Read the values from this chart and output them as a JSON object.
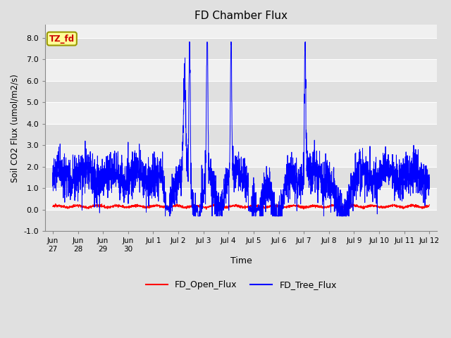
{
  "title": "FD Chamber Flux",
  "ylabel": "Soil CO2 Flux (umol/m2/s)",
  "xlabel": "Time",
  "ylim": [
    -1.0,
    8.6
  ],
  "yticks": [
    -1.0,
    0.0,
    1.0,
    2.0,
    3.0,
    4.0,
    5.0,
    6.0,
    7.0,
    8.0
  ],
  "fig_bg_color": "#e0e0e0",
  "plot_bg_color": "#f0f0f0",
  "grid_color": "#ffffff",
  "band_color_light": "#f0f0f0",
  "band_color_dark": "#e0e0e0",
  "annotation_text": "TZ_fd",
  "annotation_bg": "#ffff99",
  "annotation_text_color": "#cc0000",
  "annotation_border_color": "#999900",
  "open_flux_color": "#ff0000",
  "tree_flux_color": "#0000ff",
  "legend_open": "FD_Open_Flux",
  "legend_tree": "FD_Tree_Flux",
  "n_points": 3000,
  "tick_labels": [
    "Jun\n27",
    "Jun\n28",
    "Jun\n29",
    "Jun\n30",
    "Jul 1",
    "Jul 2",
    "Jul 3",
    "Jul 4",
    "Jul 5",
    "Jul 6",
    "Jul 7",
    "Jul 8",
    "Jul 9",
    "Jul 10",
    "Jul 11",
    "Jul 12"
  ]
}
